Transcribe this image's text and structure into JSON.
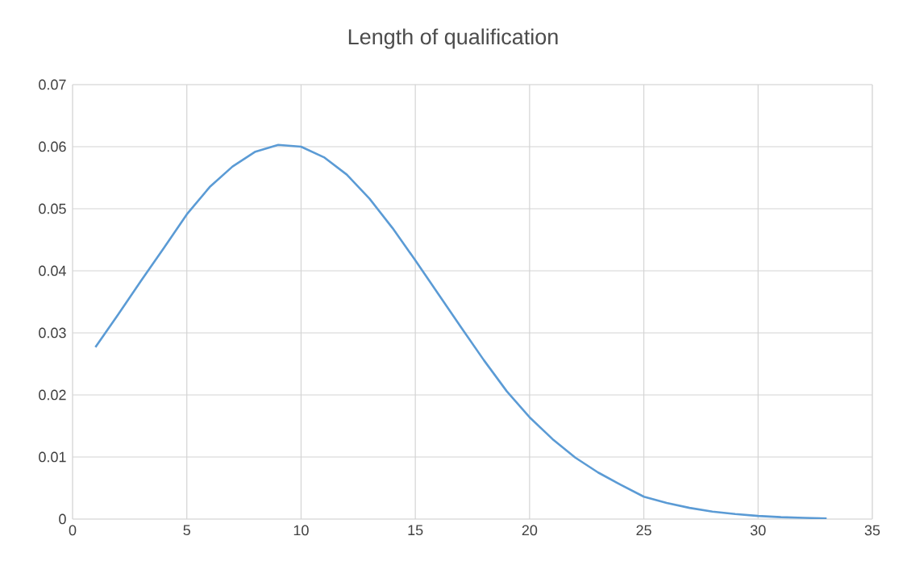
{
  "chart_data": {
    "type": "line",
    "title": "Length of qualification",
    "x": [
      1,
      2,
      3,
      4,
      5,
      6,
      7,
      8,
      9,
      10,
      11,
      12,
      13,
      14,
      15,
      16,
      17,
      18,
      19,
      20,
      21,
      22,
      23,
      24,
      25,
      26,
      27,
      28,
      29,
      30,
      31,
      32,
      33
    ],
    "series": [
      {
        "color": "#5b9bd5",
        "values": [
          0.0277,
          0.033,
          0.0384,
          0.0437,
          0.0491,
          0.0535,
          0.0568,
          0.0592,
          0.0603,
          0.06,
          0.0583,
          0.0555,
          0.0516,
          0.0469,
          0.0417,
          0.0363,
          0.0309,
          0.0256,
          0.0206,
          0.0164,
          0.0129,
          0.0099,
          0.0075,
          0.0055,
          0.0036,
          0.0026,
          0.0018,
          0.0012,
          0.0008,
          0.0005,
          0.0003,
          0.0002,
          0.0001
        ]
      }
    ],
    "xlim": [
      0,
      35
    ],
    "xticks": [
      0,
      5,
      10,
      15,
      20,
      25,
      30,
      35
    ],
    "ylim": [
      0,
      0.07
    ],
    "yticks": [
      0,
      0.01,
      0.02,
      0.03,
      0.04,
      0.05,
      0.06,
      0.07
    ],
    "grid": true,
    "marker": "none",
    "line_style": "solid"
  }
}
